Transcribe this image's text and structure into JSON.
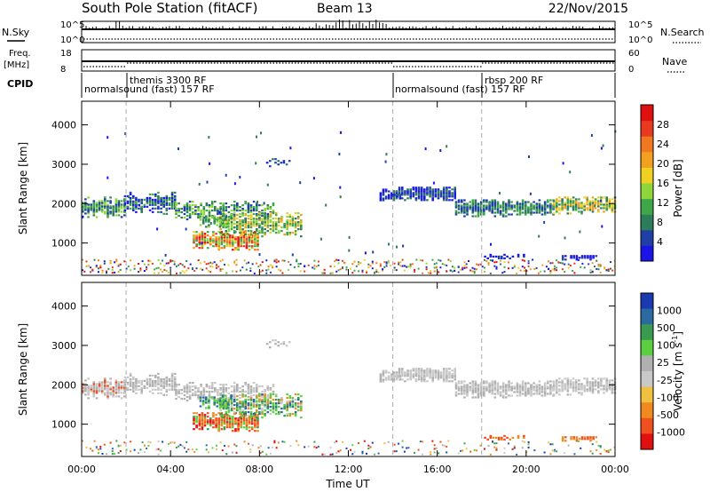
{
  "header": {
    "title": "South Pole Station (fitACF)",
    "beam": "Beam 13",
    "date": "22/Nov/2015"
  },
  "summary_panels": {
    "nsky_label": "N.Sky",
    "nsky_ticks": [
      "10^5",
      "10^0"
    ],
    "nsearch_label": "N.Search",
    "freq_label": "Freq.",
    "freq_unit": "[MHz]",
    "freq_ticks": [
      "18",
      "8"
    ],
    "nave_ticks": [
      "60",
      "0"
    ],
    "nave_label": "Nave",
    "cpid_label": "CPID",
    "cpid_segments": [
      {
        "label": "normalsound (fast) 157 RF",
        "start_hour": 0.0,
        "row": 2
      },
      {
        "label": "themis 3300 RF",
        "start_hour": 2.0,
        "row": 1
      },
      {
        "label": "normalsound (fast) 157 RF",
        "start_hour": 14.0,
        "row": 2
      },
      {
        "label": "rbsp 200 RF",
        "start_hour": 18.0,
        "row": 1
      }
    ]
  },
  "colors": {
    "power": [
      "#1b14e6",
      "#1f3fa7",
      "#2e7d5a",
      "#3fa74a",
      "#8fd63a",
      "#f0d020",
      "#f2a020",
      "#f07820",
      "#e83a20",
      "#e01010"
    ],
    "velocity": [
      "#e01010",
      "#f05020",
      "#f08a20",
      "#f0c040",
      "#c8c8c8",
      "#b0b0b0",
      "#5ad040",
      "#3a9a50",
      "#2a6aa0",
      "#1a3ab0"
    ]
  },
  "chart_data": [
    {
      "type": "heatmap",
      "panel": "power",
      "ylabel": "Slant Range [km]",
      "yticks": [
        1000,
        2000,
        3000,
        4000
      ],
      "ylim": [
        180,
        4600
      ],
      "xlim_hours": [
        0,
        24
      ],
      "colorbar_label": "Power [dB]",
      "colorbar_ticks": [
        "4",
        "8",
        "12",
        "16",
        "20",
        "24",
        "28"
      ],
      "colorbar_range": [
        0,
        30
      ]
    },
    {
      "type": "heatmap",
      "panel": "velocity",
      "xlabel": "Time UT",
      "ylabel": "Slant Range [km]",
      "yticks": [
        1000,
        2000,
        3000,
        4000
      ],
      "ylim": [
        180,
        4600
      ],
      "xlim_hours": [
        0,
        24
      ],
      "xticks": [
        "00:00",
        "04:00",
        "08:00",
        "12:00",
        "16:00",
        "20:00",
        "00:00"
      ],
      "colorbar_label": "Velocity [m s^-1]",
      "colorbar_ticks": [
        "1000",
        "500",
        "100",
        "25",
        "-25",
        "-100",
        "-500",
        "-1000"
      ]
    }
  ]
}
